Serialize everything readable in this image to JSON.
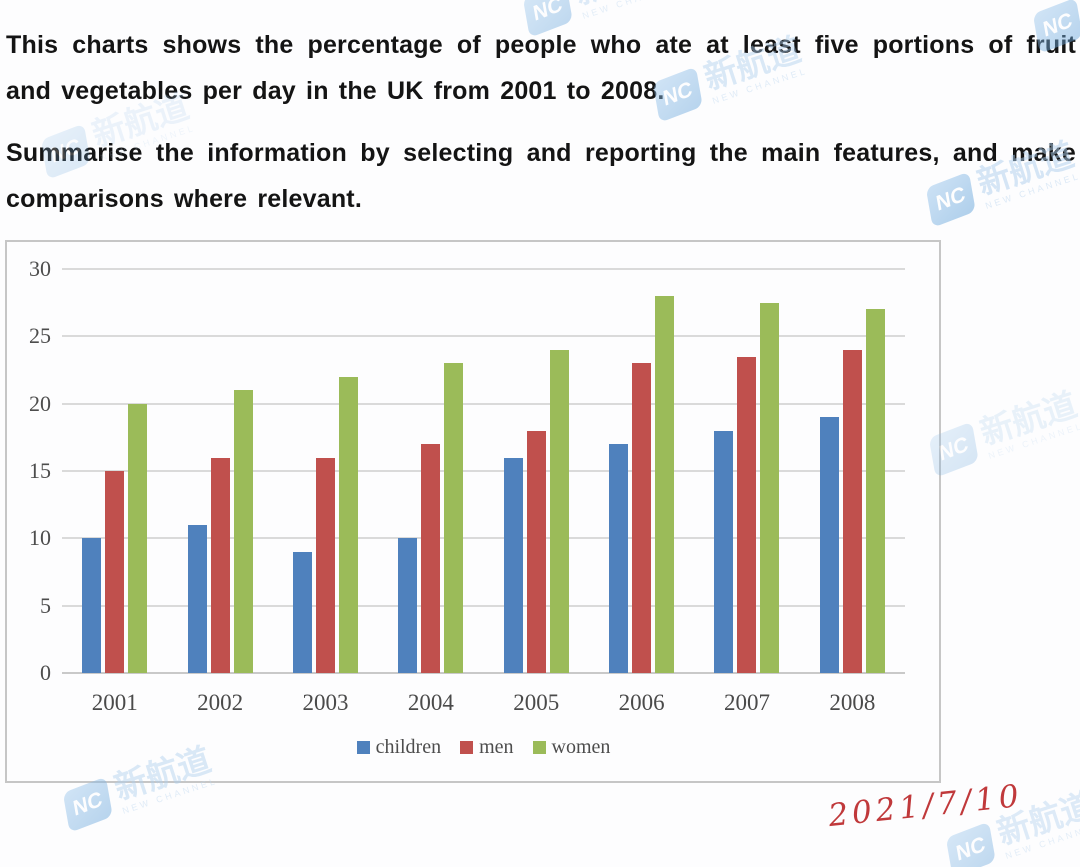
{
  "prompt": {
    "paragraph1": "This charts shows the percentage of people who ate at least five portions of fruit and vegetables per day in the UK from 2001 to 2008.",
    "paragraph2": "Summarise the information by selecting and reporting the main features, and make comparisons where relevant."
  },
  "chart_data": {
    "type": "bar",
    "title": "",
    "xlabel": "",
    "ylabel": "",
    "categories": [
      "2001",
      "2002",
      "2003",
      "2004",
      "2005",
      "2006",
      "2007",
      "2008"
    ],
    "series": [
      {
        "name": "children",
        "color": "#4f81bd",
        "values": [
          10,
          11,
          9,
          10,
          16,
          17,
          18,
          19
        ]
      },
      {
        "name": "men",
        "color": "#c0504d",
        "values": [
          15,
          16,
          16,
          17,
          18,
          23,
          23.5,
          24
        ]
      },
      {
        "name": "women",
        "color": "#9bbb59",
        "values": [
          20,
          21,
          22,
          23,
          24,
          28,
          27.5,
          27
        ]
      }
    ],
    "ylim": [
      0,
      30
    ],
    "yticks": [
      0,
      5,
      10,
      15,
      20,
      25,
      30
    ],
    "grid": "horizontal",
    "legend_position": "bottom"
  },
  "annotation": {
    "handwritten_date": "2021/7/10",
    "ink_color": "#c0393b"
  },
  "watermark": {
    "logo": "NC",
    "brand": "新航道",
    "subtext": "NEW CHANNEL"
  }
}
